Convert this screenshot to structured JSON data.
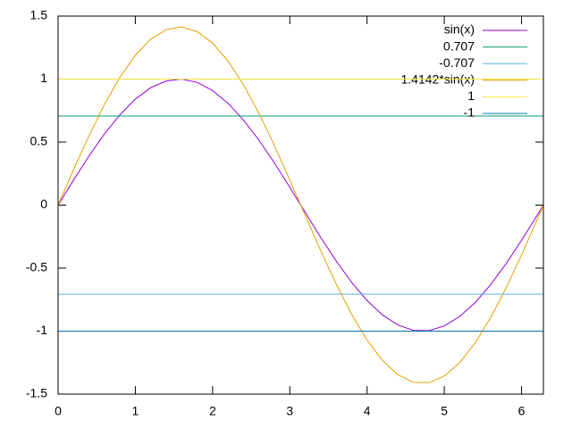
{
  "chart_data": {
    "type": "line",
    "x": [
      0,
      0.2,
      0.4,
      0.6,
      0.8,
      1.0,
      1.2,
      1.4,
      1.6,
      1.8,
      2.0,
      2.2,
      2.4,
      2.6,
      2.8,
      3.0,
      3.2,
      3.4,
      3.6,
      3.8,
      4.0,
      4.2,
      4.4,
      4.6,
      4.8,
      5.0,
      5.2,
      5.4,
      5.6,
      5.8,
      6.0,
      6.2,
      6.283
    ],
    "series": [
      {
        "name": "sin(x)",
        "color": "#9400d3",
        "values": [
          0,
          0.199,
          0.389,
          0.565,
          0.717,
          0.841,
          0.932,
          0.985,
          1.0,
          0.974,
          0.909,
          0.808,
          0.675,
          0.516,
          0.335,
          0.141,
          -0.058,
          -0.256,
          -0.443,
          -0.612,
          -0.757,
          -0.872,
          -0.952,
          -0.994,
          -0.996,
          -0.959,
          -0.883,
          -0.773,
          -0.631,
          -0.465,
          -0.279,
          -0.083,
          0
        ]
      },
      {
        "name": "0.707",
        "color": "#009e73",
        "value": 0.707
      },
      {
        "name": "-0.707",
        "color": "#56b4e9",
        "value": -0.707
      },
      {
        "name": "1.4142*sin(x)",
        "color": "#e69f00",
        "values": [
          0,
          0.281,
          0.55,
          0.799,
          1.014,
          1.189,
          1.318,
          1.393,
          1.414,
          1.377,
          1.286,
          1.143,
          0.955,
          0.73,
          0.474,
          0.199,
          -0.082,
          -0.362,
          -0.626,
          -0.866,
          -1.071,
          -1.233,
          -1.346,
          -1.406,
          -1.409,
          -1.356,
          -1.249,
          -1.093,
          -0.892,
          -0.658,
          -0.395,
          -0.117,
          0
        ]
      },
      {
        "name": "1",
        "color": "#f0e442",
        "value": 1
      },
      {
        "name": "-1",
        "color": "#0072b2",
        "value": -1
      }
    ],
    "xlim": [
      0,
      6.283
    ],
    "xticks": [
      0,
      1,
      2,
      3,
      4,
      5,
      6
    ],
    "ylim": [
      -1.5,
      1.5
    ],
    "yticks": [
      -1.5,
      -1,
      -0.5,
      0,
      0.5,
      1,
      1.5
    ],
    "legend": "top-right"
  }
}
